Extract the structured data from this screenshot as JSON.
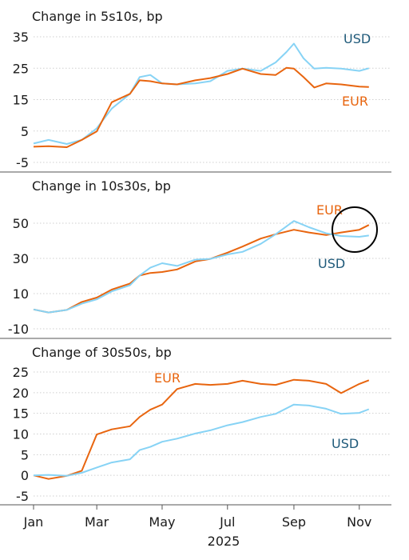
{
  "colors": {
    "usd": "#87d3f5",
    "eur": "#e8650f",
    "usd_label": "#1f5a7a",
    "eur_label": "#e8650f",
    "grid": "#cfcfcf",
    "axis": "#555555",
    "text": "#1a1a1a"
  },
  "chart_data": [
    {
      "type": "line",
      "title": "Change in 5s10s, bp",
      "yticks": [
        35,
        25,
        15,
        5,
        -5
      ],
      "ylim": [
        -6,
        36
      ],
      "grid": "dotted horizontal",
      "series": [
        {
          "name": "USD",
          "x": [
            "2025-01-01",
            "2025-01-15",
            "2025-02-01",
            "2025-02-15",
            "2025-03-01",
            "2025-03-15",
            "2025-04-01",
            "2025-04-10",
            "2025-04-20",
            "2025-05-01",
            "2025-05-15",
            "2025-06-01",
            "2025-06-15",
            "2025-07-01",
            "2025-07-15",
            "2025-08-01",
            "2025-08-15",
            "2025-08-25",
            "2025-09-01",
            "2025-09-10",
            "2025-09-20",
            "2025-10-01",
            "2025-10-15",
            "2025-11-01",
            "2025-11-10"
          ],
          "values": [
            1,
            2,
            1,
            2,
            6,
            12,
            17,
            22,
            23,
            20,
            20,
            20,
            21,
            24,
            25,
            24,
            27,
            30,
            33,
            28,
            25,
            25,
            25,
            24,
            25
          ]
        },
        {
          "name": "EUR",
          "x": [
            "2025-01-01",
            "2025-01-15",
            "2025-02-01",
            "2025-02-15",
            "2025-03-01",
            "2025-03-15",
            "2025-04-01",
            "2025-04-10",
            "2025-04-20",
            "2025-05-01",
            "2025-05-15",
            "2025-06-01",
            "2025-06-15",
            "2025-07-01",
            "2025-07-15",
            "2025-08-01",
            "2025-08-15",
            "2025-08-25",
            "2025-09-01",
            "2025-09-10",
            "2025-09-20",
            "2025-10-01",
            "2025-10-15",
            "2025-11-01",
            "2025-11-10"
          ],
          "values": [
            0,
            0,
            0,
            2,
            5,
            14,
            17,
            21,
            21,
            20,
            20,
            21,
            22,
            23,
            25,
            23,
            23,
            25,
            25,
            22,
            19,
            20,
            20,
            19,
            19
          ]
        }
      ],
      "annotations": [
        "USD",
        "EUR"
      ]
    },
    {
      "type": "line",
      "title": "Change in 10s30s, bp",
      "yticks": [
        50,
        30,
        10,
        -10
      ],
      "ylim": [
        -12,
        56
      ],
      "grid": "dotted horizontal",
      "series": [
        {
          "name": "EUR",
          "x": [
            "2025-01-01",
            "2025-01-15",
            "2025-02-01",
            "2025-02-15",
            "2025-03-01",
            "2025-03-15",
            "2025-04-01",
            "2025-04-10",
            "2025-04-20",
            "2025-05-01",
            "2025-05-15",
            "2025-06-01",
            "2025-06-15",
            "2025-07-01",
            "2025-07-15",
            "2025-08-01",
            "2025-08-15",
            "2025-09-01",
            "2025-09-15",
            "2025-10-01",
            "2025-10-15",
            "2025-11-01",
            "2025-11-10"
          ],
          "values": [
            1,
            -1,
            1,
            5,
            8,
            12,
            16,
            20,
            22,
            22,
            24,
            28,
            30,
            33,
            37,
            41,
            44,
            46,
            45,
            43,
            45,
            46,
            49
          ]
        },
        {
          "name": "USD",
          "x": [
            "2025-01-01",
            "2025-01-15",
            "2025-02-01",
            "2025-02-15",
            "2025-03-01",
            "2025-03-15",
            "2025-04-01",
            "2025-04-10",
            "2025-04-20",
            "2025-05-01",
            "2025-05-15",
            "2025-06-01",
            "2025-06-15",
            "2025-07-01",
            "2025-07-15",
            "2025-08-01",
            "2025-08-15",
            "2025-09-01",
            "2025-09-15",
            "2025-10-01",
            "2025-10-15",
            "2025-11-01",
            "2025-11-10"
          ],
          "values": [
            1,
            -1,
            1,
            4,
            7,
            11,
            15,
            20,
            25,
            27,
            26,
            29,
            30,
            32,
            34,
            38,
            44,
            51,
            48,
            44,
            43,
            42,
            43
          ]
        }
      ],
      "annotations": [
        "EUR",
        "USD"
      ]
    },
    {
      "type": "line",
      "title": "Change of 30s50s, bp",
      "yticks": [
        25,
        20,
        15,
        10,
        5,
        0,
        -5
      ],
      "ylim": [
        -6,
        26
      ],
      "grid": "dotted horizontal",
      "xticks": [
        "Jan",
        "Mar",
        "May",
        "Jul",
        "Sep",
        "Nov"
      ],
      "xlabel": "2025",
      "series": [
        {
          "name": "EUR",
          "x": [
            "2025-01-01",
            "2025-01-15",
            "2025-02-01",
            "2025-02-15",
            "2025-03-01",
            "2025-03-15",
            "2025-04-01",
            "2025-04-10",
            "2025-04-20",
            "2025-05-01",
            "2025-05-15",
            "2025-06-01",
            "2025-06-15",
            "2025-07-01",
            "2025-07-15",
            "2025-08-01",
            "2025-08-15",
            "2025-09-01",
            "2025-09-15",
            "2025-10-01",
            "2025-10-15",
            "2025-11-01",
            "2025-11-10"
          ],
          "values": [
            0,
            -1,
            0,
            1,
            10,
            11,
            12,
            14,
            16,
            17,
            21,
            22,
            22,
            22,
            23,
            22,
            22,
            23,
            23,
            22,
            20,
            22,
            23
          ]
        },
        {
          "name": "USD",
          "x": [
            "2025-01-01",
            "2025-01-15",
            "2025-02-01",
            "2025-02-15",
            "2025-03-01",
            "2025-03-15",
            "2025-04-01",
            "2025-04-10",
            "2025-04-20",
            "2025-05-01",
            "2025-05-15",
            "2025-06-01",
            "2025-06-15",
            "2025-07-01",
            "2025-07-15",
            "2025-08-01",
            "2025-08-15",
            "2025-09-01",
            "2025-09-15",
            "2025-10-01",
            "2025-10-15",
            "2025-11-01",
            "2025-11-10"
          ],
          "values": [
            0,
            0,
            0,
            0.5,
            2,
            3,
            4,
            6,
            7,
            8,
            9,
            10,
            11,
            12,
            13,
            14,
            15,
            17,
            17,
            16,
            15,
            15,
            16
          ]
        }
      ],
      "annotations": [
        "EUR",
        "USD"
      ]
    }
  ]
}
